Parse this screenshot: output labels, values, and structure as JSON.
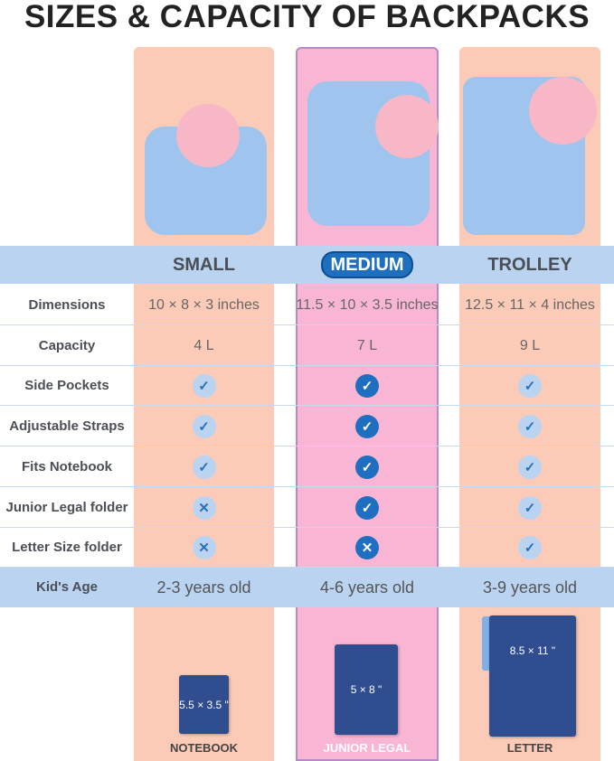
{
  "title": "SIZES & CAPACITY OF BACKPACKS",
  "columns": [
    "SMALL",
    "MEDIUM",
    "TROLLEY"
  ],
  "rows": [
    {
      "label": "Dimensions",
      "values": [
        "10 × 8 × 3 inches",
        "11.5 × 10 × 3.5 inches",
        "12.5 × 11 × 4 inches"
      ]
    },
    {
      "label": "Capacity",
      "values": [
        "4 L",
        "7 L",
        "9 L"
      ]
    },
    {
      "label": "Side Pockets",
      "values": [
        true,
        true,
        true
      ]
    },
    {
      "label": "Adjustable Straps",
      "values": [
        true,
        true,
        true
      ]
    },
    {
      "label": "Fits Notebook",
      "values": [
        true,
        true,
        true
      ]
    },
    {
      "label": "Junior Legal folder",
      "values": [
        false,
        true,
        true
      ]
    },
    {
      "label": "Letter Size folder",
      "values": [
        false,
        false,
        true
      ]
    }
  ],
  "age": {
    "label": "Kid's Age",
    "values": [
      "2-3 years old",
      "4-6 years old",
      "3-9 years old"
    ]
  },
  "folders": [
    {
      "size": "5.5 × 3.5 \"",
      "caption": "NOTEBOOK"
    },
    {
      "size": "5 × 8 \"",
      "caption": "JUNIOR LEGAL"
    },
    {
      "size": "8.5 × 11 \"",
      "caption": "LETTER"
    }
  ],
  "colors": {
    "accent": "#1e6fbf",
    "band": "#b9d3f0",
    "peach": "#fccbb8",
    "pink": "#f8b6d4"
  }
}
